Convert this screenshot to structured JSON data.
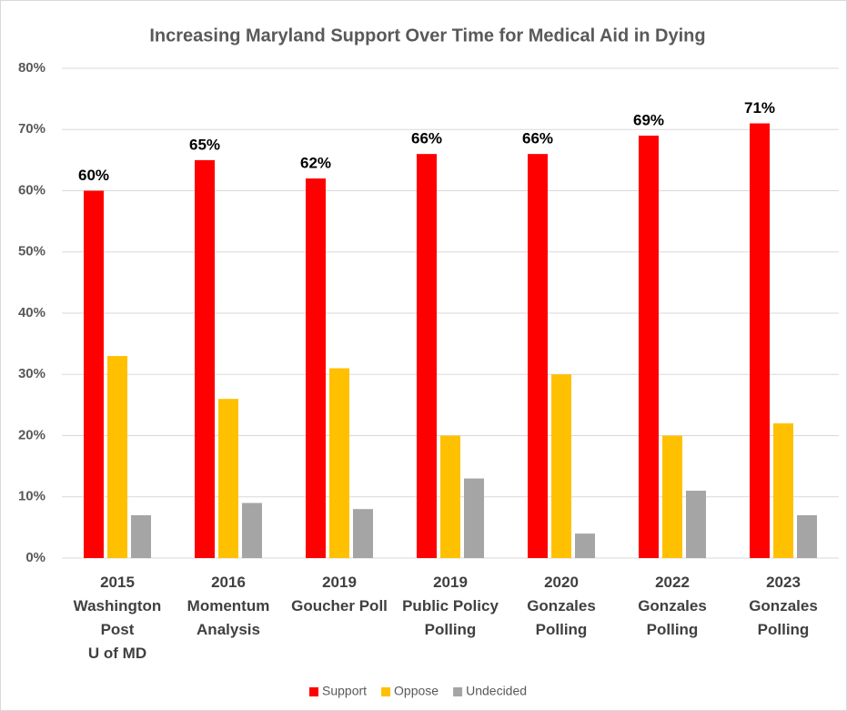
{
  "chart_data": {
    "type": "bar",
    "title": "Increasing Maryland Support Over Time for Medical Aid in Dying",
    "categories": [
      "2015\nWashington\nPost\nU of MD",
      "2016\nMomentum\nAnalysis",
      "2019\nGoucher Poll",
      "2019\nPublic Policy\nPolling",
      "2020\nGonzales\nPolling",
      "2022\nGonzales\nPolling",
      "2023\nGonzales\nPolling"
    ],
    "series": [
      {
        "name": "Support",
        "color": "#ff0000",
        "values": [
          60,
          65,
          62,
          66,
          66,
          69,
          71
        ],
        "value_labels": [
          "60%",
          "65%",
          "62%",
          "66%",
          "66%",
          "69%",
          "71%"
        ]
      },
      {
        "name": "Oppose",
        "color": "#ffc000",
        "values": [
          33,
          26,
          31,
          20,
          30,
          20,
          22
        ]
      },
      {
        "name": "Undecided",
        "color": "#a5a5a5",
        "values": [
          7,
          9,
          8,
          13,
          4,
          11,
          7
        ]
      }
    ],
    "ylim": [
      0,
      80
    ],
    "yticks": [
      {
        "value": 0,
        "label": "0%"
      },
      {
        "value": 10,
        "label": "10%"
      },
      {
        "value": 20,
        "label": "20%"
      },
      {
        "value": 30,
        "label": "30%"
      },
      {
        "value": 40,
        "label": "40%"
      },
      {
        "value": 50,
        "label": "50%"
      },
      {
        "value": 60,
        "label": "60%"
      },
      {
        "value": 70,
        "label": "70%"
      },
      {
        "value": 80,
        "label": "80%"
      }
    ],
    "grid": true,
    "legend": "bottom"
  }
}
